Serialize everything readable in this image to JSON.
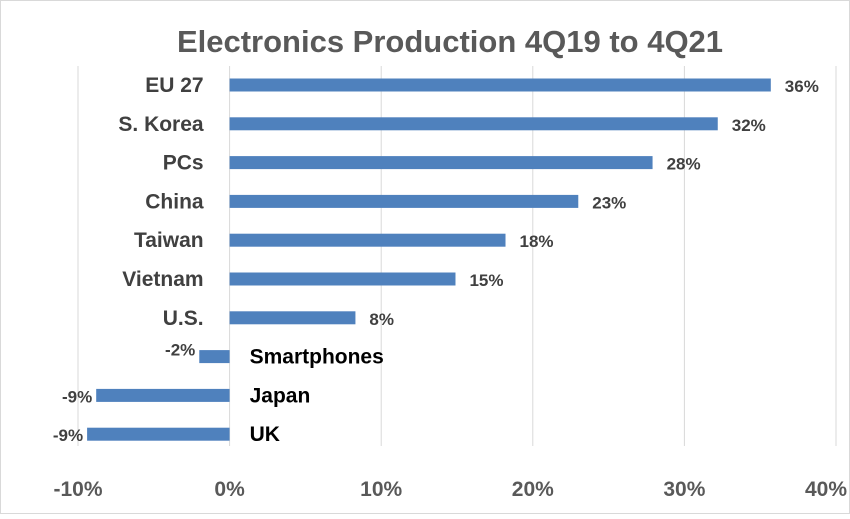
{
  "chart_data": {
    "type": "bar",
    "orientation": "horizontal",
    "title": "Electronics Production 4Q19 to 4Q21",
    "xlabel": "",
    "ylabel": "",
    "categories": [
      "EU 27",
      "S. Korea",
      "PCs",
      "China",
      "Taiwan",
      "Vietnam",
      "U.S.",
      "Smartphones",
      "Japan",
      "UK"
    ],
    "values": [
      36,
      32,
      28,
      23,
      18,
      15,
      8,
      -2,
      -9,
      -9
    ],
    "value_labels": [
      "36%",
      "32%",
      "28%",
      "23%",
      "18%",
      "15%",
      "8%",
      "-2%",
      "-9%",
      "-9%"
    ],
    "display_values": [
      35.7,
      32.2,
      27.9,
      23.0,
      18.2,
      14.9,
      8.3,
      -2.0,
      -8.8,
      -9.4
    ],
    "xlim": [
      -10,
      40
    ],
    "x_ticks": [
      -10,
      0,
      10,
      20,
      30,
      40
    ],
    "x_tick_labels": [
      "-10%",
      "0%",
      "10%",
      "20%",
      "30%",
      "40%"
    ],
    "grid": true,
    "legend": "none",
    "colors": {
      "bar": "#4f81bd",
      "grid": "#d9d9d9",
      "text": "#404040",
      "label_on_bar_side": "#000000"
    }
  }
}
